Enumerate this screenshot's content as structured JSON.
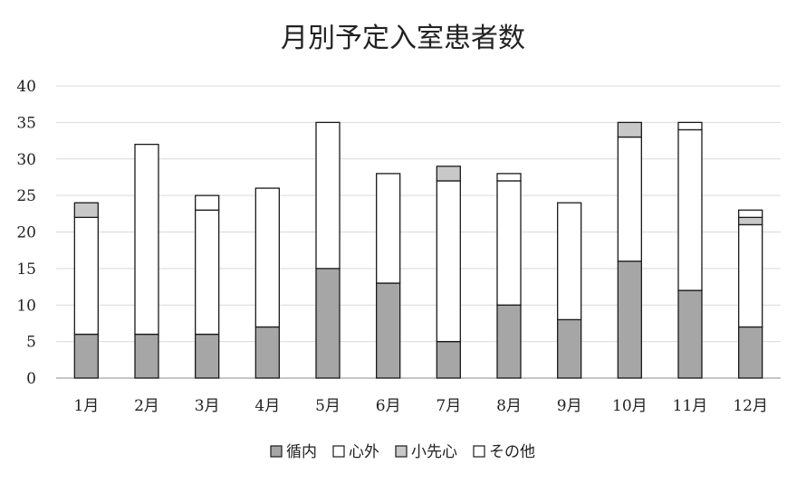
{
  "chart_data": {
    "type": "bar",
    "stacked": true,
    "title": "月別予定入室患者数",
    "xlabel": "",
    "ylabel": "",
    "categories": [
      "1月",
      "2月",
      "3月",
      "4月",
      "5月",
      "6月",
      "7月",
      "8月",
      "9月",
      "10月",
      "11月",
      "12月"
    ],
    "ylim": [
      0,
      40
    ],
    "yticks": [
      0,
      5,
      10,
      15,
      20,
      25,
      30,
      35,
      40
    ],
    "grid": true,
    "legend_position": "bottom",
    "series": [
      {
        "name": "循内",
        "color": "#a6a6a6",
        "values": [
          6,
          6,
          6,
          7,
          15,
          13,
          5,
          10,
          8,
          16,
          12,
          7
        ]
      },
      {
        "name": "心外",
        "color": "#ffffff",
        "values": [
          16,
          26,
          17,
          19,
          20,
          15,
          22,
          17,
          16,
          17,
          22,
          14
        ]
      },
      {
        "name": "小先心",
        "color": "#c8c8c8",
        "values": [
          2,
          0,
          0,
          0,
          0,
          0,
          2,
          0,
          0,
          2,
          0,
          1
        ]
      },
      {
        "name": "その他",
        "color": "#ffffff",
        "values": [
          0,
          0,
          2,
          0,
          0,
          0,
          0,
          1,
          0,
          0,
          1,
          1
        ]
      }
    ]
  }
}
